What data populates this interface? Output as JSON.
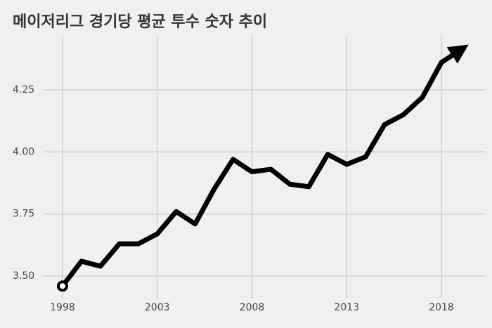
{
  "chart_data": {
    "type": "line",
    "title": "메이저리그 경기당 평균 투수 숫자 추이",
    "x": [
      1998,
      1999,
      2000,
      2001,
      2002,
      2003,
      2004,
      2005,
      2006,
      2007,
      2008,
      2009,
      2010,
      2011,
      2012,
      2013,
      2014,
      2015,
      2016,
      2017,
      2018,
      2019
    ],
    "series": [
      {
        "color": "#000000",
        "values": [
          3.46,
          3.56,
          3.54,
          3.63,
          3.63,
          3.67,
          3.76,
          3.71,
          3.85,
          3.97,
          3.92,
          3.93,
          3.87,
          3.86,
          3.99,
          3.95,
          3.98,
          4.11,
          4.15,
          4.22,
          4.36,
          4.41
        ]
      }
    ],
    "xlim": [
      1997,
      2020.3
    ],
    "xticks": [
      1998,
      2003,
      2008,
      2013,
      2018
    ],
    "ylim": [
      3.41,
      4.47
    ],
    "yticks": [
      {
        "value": 3.5,
        "label": "3.50"
      },
      {
        "value": 3.75,
        "label": "3.75"
      },
      {
        "value": 4,
        "label": "4.00"
      },
      {
        "value": 4.25,
        "label": "4.25"
      }
    ],
    "grid": true
  }
}
